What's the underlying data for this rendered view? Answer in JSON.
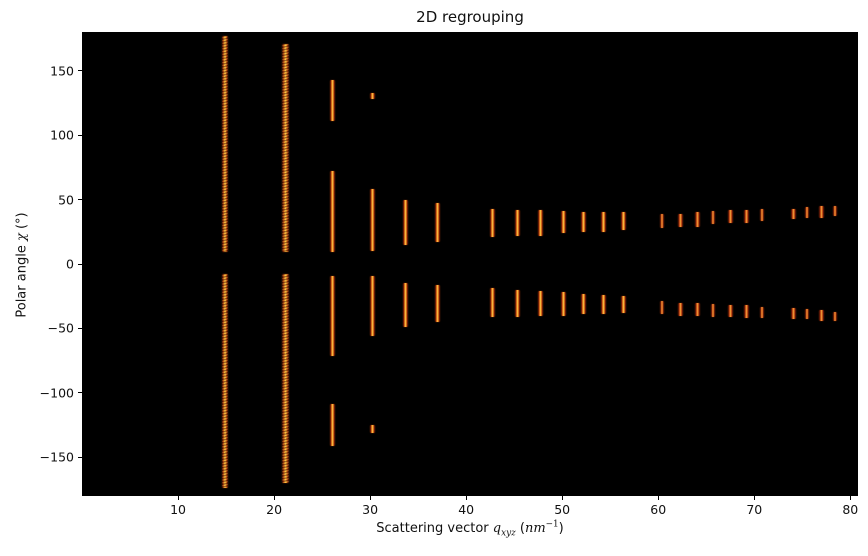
{
  "figure": {
    "background": "#ffffff",
    "plot_background": "#000000"
  },
  "chart_data": {
    "type": "heatmap",
    "title": "2D regrouping",
    "xlabel": "Scattering vector q_xyz (nm^-1)",
    "ylabel": "Polar angle χ (°)",
    "xlabel_parts": {
      "prefix": "Scattering vector ",
      "var": "q",
      "sub": "xyz",
      "open": " (",
      "unit": "nm",
      "exp": "−1",
      "close": ")"
    },
    "ylabel_parts": {
      "prefix": "Polar angle ",
      "var": "χ",
      "suffix": " (°)"
    },
    "xlim": [
      0,
      80.8
    ],
    "ylim": [
      -180,
      180
    ],
    "x_ticks": [
      10,
      20,
      30,
      40,
      50,
      60,
      70,
      80
    ],
    "x_tick_labels": [
      "10",
      "20",
      "30",
      "40",
      "50",
      "60",
      "70",
      "80"
    ],
    "y_ticks": [
      150,
      100,
      50,
      0,
      -50,
      -100,
      -150
    ],
    "y_tick_labels": [
      "150",
      "100",
      "50",
      "0",
      "−50",
      "−100",
      "−150"
    ],
    "grid": false,
    "legend_position": "none",
    "colormap": {
      "background": "#000000",
      "edge": "#7a2007",
      "mid": "#e06a18",
      "core_bright": "#fcd24b",
      "core_orange": "#f3aa3e"
    },
    "marks_format": [
      "q_center_nm-1",
      "chi_min_deg",
      "chi_max_deg",
      "style"
    ],
    "marks": [
      [
        14.9,
        9,
        177,
        "long"
      ],
      [
        14.9,
        -174,
        -8,
        "long"
      ],
      [
        21.2,
        9,
        171,
        "long"
      ],
      [
        21.2,
        -170,
        -8,
        "long"
      ],
      [
        26.1,
        111,
        143,
        "bright"
      ],
      [
        26.1,
        9,
        72,
        "bright"
      ],
      [
        26.1,
        -71,
        -9,
        "bright"
      ],
      [
        26.1,
        -141,
        -109,
        "bright"
      ],
      [
        30.2,
        128,
        133,
        "bright"
      ],
      [
        30.2,
        10,
        58,
        "bright"
      ],
      [
        30.2,
        -56,
        -9,
        "bright"
      ],
      [
        30.2,
        -131,
        -125,
        "bright"
      ],
      [
        33.7,
        15,
        50,
        "bright"
      ],
      [
        33.7,
        -49,
        -15,
        "bright"
      ],
      [
        37.0,
        17,
        47,
        "bright"
      ],
      [
        37.0,
        -45,
        -16,
        "bright"
      ],
      [
        42.7,
        21,
        43,
        "bright"
      ],
      [
        42.7,
        -41,
        -19,
        "bright"
      ],
      [
        45.3,
        22,
        42,
        "bright"
      ],
      [
        45.3,
        -41,
        -20,
        "bright"
      ],
      [
        47.7,
        22,
        42,
        "bright"
      ],
      [
        47.7,
        -40,
        -21,
        "bright"
      ],
      [
        50.1,
        24,
        41,
        "bright"
      ],
      [
        50.1,
        -40,
        -22,
        "bright"
      ],
      [
        52.2,
        25,
        40,
        "bright"
      ],
      [
        52.2,
        -39,
        -23,
        "bright"
      ],
      [
        54.3,
        25,
        40,
        "bright"
      ],
      [
        54.3,
        -39,
        -24,
        "bright"
      ],
      [
        56.4,
        26,
        40,
        "bright"
      ],
      [
        56.4,
        -38,
        -25,
        "bright"
      ],
      [
        60.4,
        28,
        39,
        "orange"
      ],
      [
        60.4,
        -39,
        -29,
        "orange"
      ],
      [
        62.3,
        29,
        39,
        "orange"
      ],
      [
        62.3,
        -40,
        -30,
        "orange"
      ],
      [
        64.1,
        29,
        40,
        "orange"
      ],
      [
        64.1,
        -40,
        -30,
        "orange"
      ],
      [
        65.7,
        31,
        41,
        "orange"
      ],
      [
        65.7,
        -41,
        -31,
        "orange"
      ],
      [
        67.5,
        32,
        42,
        "orange"
      ],
      [
        67.5,
        -41,
        -32,
        "orange"
      ],
      [
        69.2,
        32,
        42,
        "orange"
      ],
      [
        69.2,
        -42,
        -32,
        "orange"
      ],
      [
        70.8,
        33,
        43,
        "orange"
      ],
      [
        70.8,
        -42,
        -33,
        "orange"
      ],
      [
        74.1,
        35,
        43,
        "orange"
      ],
      [
        74.1,
        -43,
        -34,
        "orange"
      ],
      [
        75.5,
        36,
        44,
        "orange"
      ],
      [
        75.5,
        -43,
        -35,
        "orange"
      ],
      [
        77.0,
        36,
        45,
        "orange"
      ],
      [
        77.0,
        -44,
        -36,
        "orange"
      ],
      [
        78.4,
        37,
        45,
        "orange"
      ],
      [
        78.4,
        -44,
        -37,
        "orange"
      ]
    ]
  }
}
